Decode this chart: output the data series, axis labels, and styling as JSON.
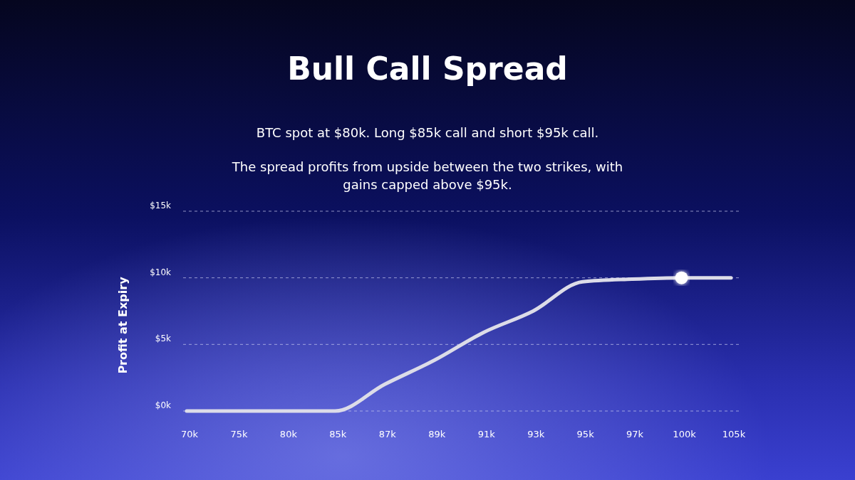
{
  "chart_data": {
    "type": "line",
    "title": "Bull Call Spread",
    "subtitle": "BTC spot at $80k. Long $85k call and short $95k call.",
    "annotations": [
      "The spread profits from upside between the two strikes, with gains capped above $95k."
    ],
    "ylabel": "Profit at Expiry",
    "categories": [
      "70k",
      "75k",
      "80k",
      "85k",
      "87k",
      "89k",
      "91k",
      "93k",
      "95k",
      "97k",
      "100k",
      "105k"
    ],
    "series": [
      {
        "color": "#dcdce8",
        "marker": "none",
        "values": [
          0,
          0,
          0,
          0,
          2.0,
          3.8,
          5.9,
          7.5,
          9.7,
          9.9,
          10,
          10
        ]
      },
      {
        "type": "scatter",
        "color": "#ffffff",
        "marker": "circle",
        "x": [
          "100k"
        ],
        "values": [
          10
        ]
      }
    ],
    "ylim": [
      0,
      15
    ],
    "yticks": [
      {
        "value": 0,
        "label": "$0k"
      },
      {
        "value": 5,
        "label": "$5k"
      },
      {
        "value": 10,
        "label": "$10k"
      },
      {
        "value": 15,
        "label": "$15k"
      }
    ],
    "grid": "y",
    "line_style": "solid"
  }
}
